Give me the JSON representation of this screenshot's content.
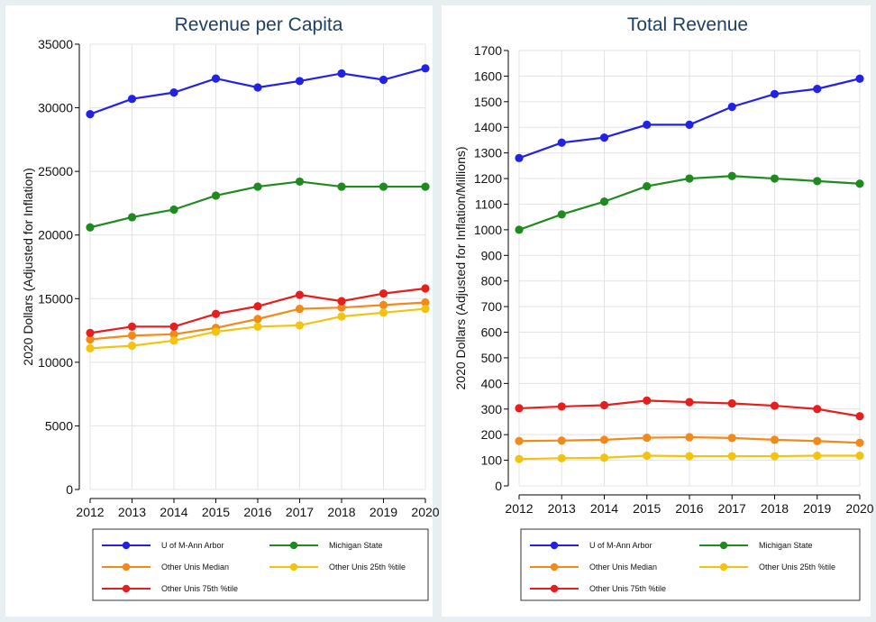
{
  "chart_data": [
    {
      "type": "line",
      "title": "Revenue per Capita",
      "xlabel": "",
      "ylabel": "2020 Dollars (Adjusted for Inflation)",
      "x": [
        2012,
        2013,
        2014,
        2015,
        2016,
        2017,
        2018,
        2019,
        2020
      ],
      "ylim": [
        0,
        35000
      ],
      "yticks": [
        0,
        5000,
        10000,
        15000,
        20000,
        25000,
        30000,
        35000
      ],
      "grid": true,
      "legend": "bottom",
      "series": [
        {
          "name": "U of M-Ann Arbor",
          "color": "#2222e6",
          "values": [
            29500,
            30700,
            31200,
            32300,
            31600,
            32100,
            32700,
            32200,
            33100
          ]
        },
        {
          "name": "Michigan State",
          "color": "#1f8a1f",
          "values": [
            20600,
            21400,
            22000,
            23100,
            23800,
            24200,
            23800,
            23800,
            23800
          ]
        },
        {
          "name": "Other Unis Median",
          "color": "#f28a1a",
          "values": [
            11800,
            12100,
            12200,
            12700,
            13400,
            14200,
            14300,
            14500,
            14700
          ]
        },
        {
          "name": "Other Unis 25th %tile",
          "color": "#f2c40f",
          "values": [
            11100,
            11300,
            11700,
            12400,
            12800,
            12900,
            13600,
            13900,
            14200
          ]
        },
        {
          "name": "Other Unis 75th %tile",
          "color": "#e61e1e",
          "values": [
            12300,
            12800,
            12800,
            13800,
            14400,
            15300,
            14800,
            15400,
            15800
          ]
        }
      ]
    },
    {
      "type": "line",
      "title": "Total Revenue",
      "xlabel": "",
      "ylabel": "2020 Dollars (Adjusted for Inflation/Millions)",
      "x": [
        2012,
        2013,
        2014,
        2015,
        2016,
        2017,
        2018,
        2019,
        2020
      ],
      "ylim": [
        0,
        1700
      ],
      "yticks": [
        0,
        100,
        200,
        300,
        400,
        500,
        600,
        700,
        800,
        900,
        1000,
        1100,
        1200,
        1300,
        1400,
        1500,
        1600,
        1700
      ],
      "grid": true,
      "legend": "bottom",
      "series": [
        {
          "name": "U of M-Ann Arbor",
          "color": "#2222e6",
          "values": [
            1280,
            1340,
            1360,
            1410,
            1410,
            1480,
            1530,
            1550,
            1590
          ]
        },
        {
          "name": "Michigan State",
          "color": "#1f8a1f",
          "values": [
            1000,
            1060,
            1110,
            1170,
            1200,
            1210,
            1200,
            1190,
            1180
          ]
        },
        {
          "name": "Other Unis Median",
          "color": "#f28a1a",
          "values": [
            175,
            177,
            180,
            188,
            190,
            187,
            180,
            175,
            168
          ]
        },
        {
          "name": "Other Unis 25th %tile",
          "color": "#f2c40f",
          "values": [
            105,
            108,
            110,
            118,
            116,
            116,
            116,
            118,
            118
          ]
        },
        {
          "name": "Other Unis 75th %tile",
          "color": "#e61e1e",
          "values": [
            303,
            310,
            315,
            333,
            327,
            322,
            313,
            300,
            272
          ]
        }
      ]
    }
  ]
}
